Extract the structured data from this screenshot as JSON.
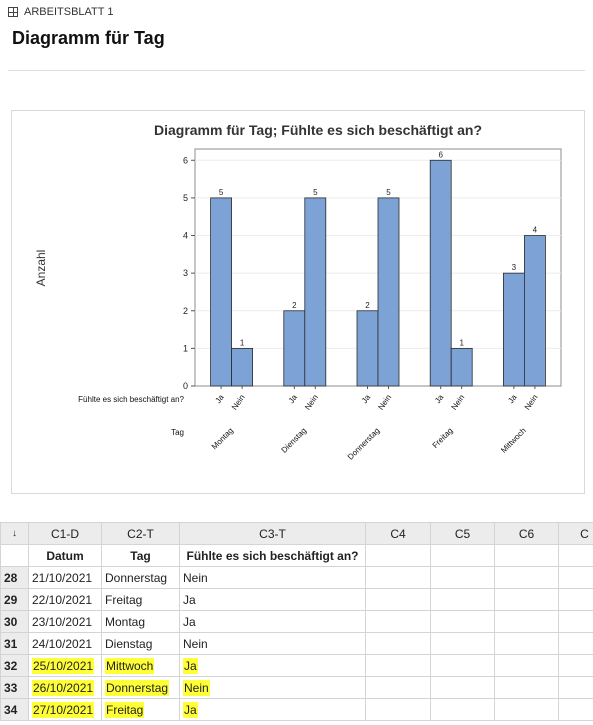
{
  "header": {
    "sheet_label": "ARBEITSBLATT 1",
    "page_title": "Diagramm für Tag"
  },
  "chart_data": {
    "type": "bar",
    "title": "Diagramm für Tag; Fühlte es sich beschäftigt an?",
    "ylabel": "Anzahl",
    "ylim": [
      0,
      6.3
    ],
    "yticks": [
      0,
      1,
      2,
      3,
      4,
      5,
      6
    ],
    "inner_factor_label": "Fühlte es sich beschäftigt an?",
    "outer_factor_label": "Tag",
    "bar_color": "#7da2d6",
    "groups": [
      {
        "label": "Montag",
        "bars": [
          {
            "label": "Ja",
            "value": 5
          },
          {
            "label": "Nein",
            "value": 1
          }
        ]
      },
      {
        "label": "Dienstag",
        "bars": [
          {
            "label": "Ja",
            "value": 2
          },
          {
            "label": "Nein",
            "value": 5
          }
        ]
      },
      {
        "label": "Donnerstag",
        "bars": [
          {
            "label": "Ja",
            "value": 2
          },
          {
            "label": "Nein",
            "value": 5
          }
        ]
      },
      {
        "label": "Freitag",
        "bars": [
          {
            "label": "Ja",
            "value": 6
          },
          {
            "label": "Nein",
            "value": 1
          }
        ]
      },
      {
        "label": "Mittwoch",
        "bars": [
          {
            "label": "Ja",
            "value": 3
          },
          {
            "label": "Nein",
            "value": 4
          }
        ]
      }
    ]
  },
  "worksheet": {
    "corner_symbol": "↓",
    "columns": [
      "C1-D",
      "C2-T",
      "C3-T",
      "C4",
      "C5",
      "C6",
      "C"
    ],
    "variables": [
      "Datum",
      "Tag",
      "Fühlte es sich beschäftigt an?",
      "",
      "",
      "",
      ""
    ],
    "rows": [
      {
        "n": "28",
        "datum": "21/10/2021",
        "tag": "Donnerstag",
        "busy": "Nein"
      },
      {
        "n": "29",
        "datum": "22/10/2021",
        "tag": "Freitag",
        "busy": "Ja"
      },
      {
        "n": "30",
        "datum": "23/10/2021",
        "tag": "Montag",
        "busy": "Ja"
      },
      {
        "n": "31",
        "datum": "24/10/2021",
        "tag": "Dienstag",
        "busy": "Nein"
      },
      {
        "n": "32",
        "datum": "25/10/2021",
        "tag": "Mittwoch",
        "busy": "Ja"
      },
      {
        "n": "33",
        "datum": "26/10/2021",
        "tag": "Donnerstag",
        "busy": "Nein"
      },
      {
        "n": "34",
        "datum": "27/10/2021",
        "tag": "Freitag",
        "busy": "Ja"
      }
    ],
    "highlight_color": "#ffff38"
  }
}
